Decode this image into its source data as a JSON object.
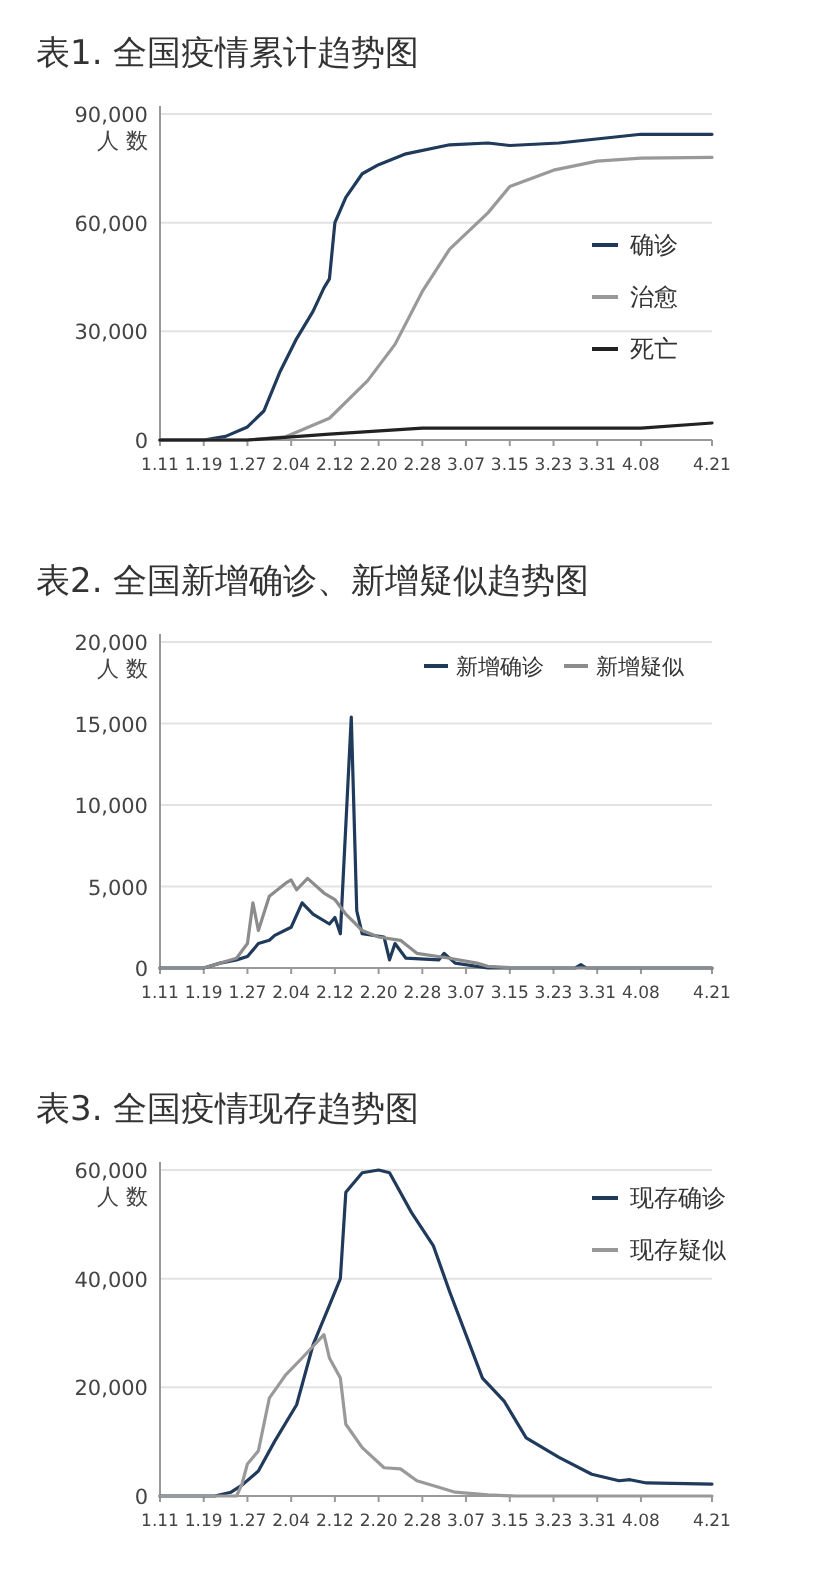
{
  "chart_data": [
    {
      "type": "line",
      "title": "表1. 全国疫情累计趋势图",
      "ylabel": "人 数",
      "ylim": [
        0,
        90000
      ],
      "yticks": [
        {
          "value": 0,
          "label": "0"
        },
        {
          "value": 30000,
          "label": "30,000"
        },
        {
          "value": 60000,
          "label": "60,000"
        },
        {
          "value": 90000,
          "label": "90,000"
        }
      ],
      "xlim": [
        "--01-11",
        "--04-21"
      ],
      "xticks": [
        {
          "value": "--01-11",
          "label": "1.11"
        },
        {
          "value": "--01-19",
          "label": "1.19"
        },
        {
          "value": "--01-27",
          "label": "1.27"
        },
        {
          "value": "--02-04",
          "label": "2.04"
        },
        {
          "value": "--02-12",
          "label": "2.12"
        },
        {
          "value": "--02-20",
          "label": "2.20"
        },
        {
          "value": "--02-28",
          "label": "2.28"
        },
        {
          "value": "--03-07",
          "label": "3.07"
        },
        {
          "value": "--03-15",
          "label": "3.15"
        },
        {
          "value": "--03-23",
          "label": "3.23"
        },
        {
          "value": "--03-31",
          "label": "3.31"
        },
        {
          "value": "--04-08",
          "label": "4.08"
        },
        {
          "value": "--04-21",
          "label": "4.21"
        }
      ],
      "grid": "y",
      "legend": "right",
      "marker": "none",
      "line_style": "solid",
      "series": [
        {
          "name": "确诊",
          "color": "#1f3a5a",
          "x": [
            "--01-11",
            "--01-19",
            "--01-23",
            "--01-27",
            "--01-30",
            "--02-02",
            "--02-05",
            "--02-08",
            "--02-10",
            "--02-11",
            "--02-12",
            "--02-14",
            "--02-17",
            "--02-20",
            "--02-25",
            "--03-04",
            "--03-11",
            "--03-15",
            "--03-24",
            "--04-08",
            "--04-21"
          ],
          "values": [
            0,
            0,
            1000,
            3600,
            8000,
            19000,
            28000,
            35500,
            42000,
            44500,
            60000,
            67000,
            73500,
            76000,
            79000,
            81500,
            82000,
            81300,
            82000,
            84400,
            84400
          ]
        },
        {
          "name": "治愈",
          "color": "#999999",
          "x": [
            "--01-11",
            "--01-27",
            "--02-03",
            "--02-11",
            "--02-18",
            "--02-23",
            "--02-28",
            "--03-04",
            "--03-11",
            "--03-15",
            "--03-23",
            "--03-31",
            "--04-08",
            "--04-21"
          ],
          "values": [
            0,
            0,
            900,
            6000,
            16400,
            26400,
            41000,
            52700,
            62700,
            70000,
            74500,
            77000,
            77800,
            78000
          ]
        },
        {
          "name": "死亡",
          "color": "#222222",
          "x": [
            "--01-11",
            "--01-27",
            "--02-11",
            "--02-28",
            "--04-08",
            "--04-21"
          ],
          "values": [
            0,
            0,
            1600,
            3300,
            3300,
            4700
          ]
        }
      ]
    },
    {
      "type": "line",
      "title": "表2. 全国新增确诊、新增疑似趋势图",
      "ylabel": "人 数",
      "ylim": [
        0,
        20000
      ],
      "yticks": [
        {
          "value": 0,
          "label": "0"
        },
        {
          "value": 5000,
          "label": "5,000"
        },
        {
          "value": 10000,
          "label": "10,000"
        },
        {
          "value": 15000,
          "label": "15,000"
        },
        {
          "value": 20000,
          "label": "20,000"
        }
      ],
      "xlim": [
        "--01-11",
        "--04-21"
      ],
      "xticks": [
        {
          "value": "--01-11",
          "label": "1.11"
        },
        {
          "value": "--01-19",
          "label": "1.19"
        },
        {
          "value": "--01-27",
          "label": "1.27"
        },
        {
          "value": "--02-04",
          "label": "2.04"
        },
        {
          "value": "--02-12",
          "label": "2.12"
        },
        {
          "value": "--02-20",
          "label": "2.20"
        },
        {
          "value": "--02-28",
          "label": "2.28"
        },
        {
          "value": "--03-07",
          "label": "3.07"
        },
        {
          "value": "--03-15",
          "label": "3.15"
        },
        {
          "value": "--03-23",
          "label": "3.23"
        },
        {
          "value": "--03-31",
          "label": "3.31"
        },
        {
          "value": "--04-08",
          "label": "4.08"
        },
        {
          "value": "--04-21",
          "label": "4.21"
        }
      ],
      "grid": "y",
      "legend": "top",
      "marker": "none",
      "line_style": "solid",
      "series": [
        {
          "name": "新增确诊",
          "color": "#1f3a5a",
          "x": [
            "--01-11",
            "--01-19",
            "--01-22",
            "--01-25",
            "--01-27",
            "--01-29",
            "--01-31",
            "--02-01",
            "--02-04",
            "--02-06",
            "--02-08",
            "--02-11",
            "--02-12",
            "--02-13",
            "--02-15",
            "--02-16",
            "--02-17",
            "--02-21",
            "--02-22",
            "--02-23",
            "--02-25",
            "--03-02",
            "--03-03",
            "--03-05",
            "--03-11",
            "--03-27",
            "--03-28",
            "--03-29",
            "--04-21"
          ],
          "values": [
            0,
            0,
            300,
            500,
            700,
            1500,
            1700,
            2000,
            2500,
            4000,
            3300,
            2700,
            3100,
            2100,
            15400,
            3500,
            2100,
            1900,
            500,
            1500,
            600,
            500,
            900,
            300,
            0,
            0,
            200,
            0,
            0
          ]
        },
        {
          "name": "新增疑似",
          "color": "#8c8c8c",
          "x": [
            "--01-11",
            "--01-19",
            "--01-25",
            "--01-27",
            "--01-28",
            "--01-29",
            "--01-31",
            "--02-03",
            "--02-04",
            "--02-05",
            "--02-07",
            "--02-10",
            "--02-12",
            "--02-14",
            "--02-17",
            "--02-20",
            "--02-24",
            "--02-27",
            "--03-04",
            "--03-09",
            "--03-11",
            "--03-16",
            "--04-21"
          ],
          "values": [
            0,
            0,
            600,
            1500,
            4000,
            2300,
            4400,
            5200,
            5400,
            4800,
            5500,
            4600,
            4200,
            3300,
            2300,
            1900,
            1700,
            900,
            600,
            300,
            100,
            0,
            0
          ]
        }
      ]
    },
    {
      "type": "line",
      "title": "表3. 全国疫情现存趋势图",
      "ylabel": "人 数",
      "ylim": [
        0,
        60000
      ],
      "yticks": [
        {
          "value": 0,
          "label": "0"
        },
        {
          "value": 20000,
          "label": "20,000"
        },
        {
          "value": 40000,
          "label": "40,000"
        },
        {
          "value": 60000,
          "label": "60,000"
        }
      ],
      "xlim": [
        "--01-11",
        "--04-21"
      ],
      "xticks": [
        {
          "value": "--01-11",
          "label": "1.11"
        },
        {
          "value": "--01-19",
          "label": "1.19"
        },
        {
          "value": "--01-27",
          "label": "1.27"
        },
        {
          "value": "--02-04",
          "label": "2.04"
        },
        {
          "value": "--02-12",
          "label": "2.12"
        },
        {
          "value": "--02-20",
          "label": "2.20"
        },
        {
          "value": "--02-28",
          "label": "2.28"
        },
        {
          "value": "--03-07",
          "label": "3.07"
        },
        {
          "value": "--03-15",
          "label": "3.15"
        },
        {
          "value": "--03-23",
          "label": "3.23"
        },
        {
          "value": "--03-31",
          "label": "3.31"
        },
        {
          "value": "--04-08",
          "label": "4.08"
        },
        {
          "value": "--04-21",
          "label": "4.21"
        }
      ],
      "grid": "y",
      "legend": "top right",
      "marker": "none",
      "line_style": "solid",
      "series": [
        {
          "name": "现存确诊",
          "color": "#1f3a5a",
          "x": [
            "--01-11",
            "--01-21",
            "--01-24",
            "--01-26",
            "--01-29",
            "--02-01",
            "--02-05",
            "--02-08",
            "--02-11",
            "--02-13",
            "--02-14",
            "--02-17",
            "--02-20",
            "--02-22",
            "--02-26",
            "--03-01",
            "--03-04",
            "--03-10",
            "--03-14",
            "--03-18",
            "--03-24",
            "--03-30",
            "--04-04",
            "--04-06",
            "--04-09",
            "--04-21"
          ],
          "values": [
            0,
            0,
            700,
            2000,
            4600,
            10100,
            16800,
            27800,
            35100,
            40000,
            55900,
            59500,
            60000,
            59500,
            52200,
            46100,
            37600,
            21700,
            17400,
            10700,
            7100,
            4000,
            2800,
            3000,
            2400,
            2200
          ]
        },
        {
          "name": "现存疑似",
          "color": "#999999",
          "x": [
            "--01-11",
            "--01-25",
            "--01-26",
            "--01-27",
            "--01-29",
            "--01-31",
            "--02-03",
            "--02-06",
            "--02-10",
            "--02-11",
            "--02-13",
            "--02-14",
            "--02-17",
            "--02-21",
            "--02-24",
            "--02-27",
            "--03-02",
            "--03-05",
            "--03-11",
            "--03-16",
            "--04-21"
          ],
          "values": [
            0,
            0,
            2200,
            5900,
            8300,
            18000,
            22300,
            25400,
            29700,
            25400,
            21700,
            13200,
            8900,
            5200,
            5000,
            2800,
            1600,
            700,
            200,
            0,
            0
          ]
        }
      ]
    }
  ]
}
